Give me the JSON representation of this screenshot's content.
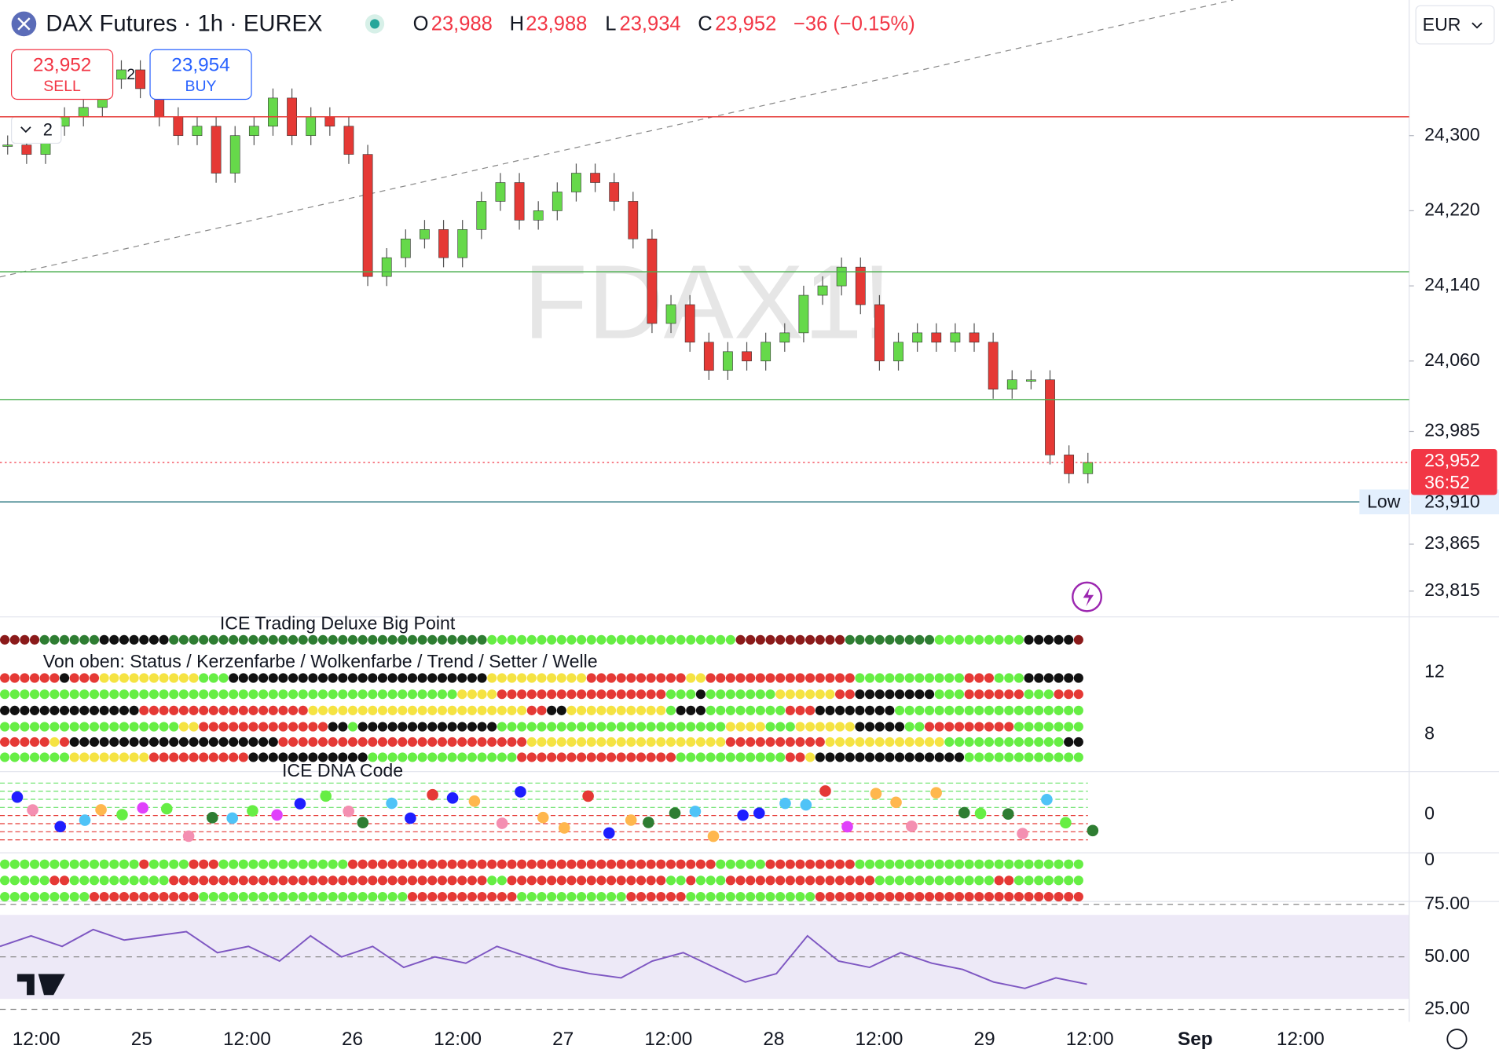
{
  "header": {
    "symbol": "DAX Futures · 1h · EUREX",
    "open_label": "O",
    "open": "23,988",
    "high_label": "H",
    "high": "23,988",
    "low_label": "L",
    "low": "23,934",
    "close_label": "C",
    "close": "23,952",
    "change": "−36 (−0.15%)",
    "currency": "EUR"
  },
  "order_panel": {
    "sell_price": "23,952",
    "sell_label": "SELL",
    "spread": "2",
    "buy_price": "23,954",
    "buy_label": "BUY",
    "collapse": "2"
  },
  "watermark": "FDAX1!",
  "price_axis": {
    "ylim": [
      24420,
      23770
    ],
    "yticks": [
      {
        "value": 24300,
        "label": "24,300"
      },
      {
        "value": 24220,
        "label": "24,220"
      },
      {
        "value": 24140,
        "label": "24,140"
      },
      {
        "value": 24060,
        "label": "24,060"
      },
      {
        "value": 23985,
        "label": "23,985"
      },
      {
        "value": 23865,
        "label": "23,865"
      },
      {
        "value": 23815,
        "label": "23,815"
      }
    ]
  },
  "last_price": {
    "value": 23952,
    "label": "23,952",
    "countdown": "36:52"
  },
  "low_marker": {
    "value": 23910,
    "label": "23,910",
    "name": "Low"
  },
  "levels": [
    24320,
    24155,
    24019
  ],
  "price": {
    "closes": [
      24290,
      24280,
      24310,
      24320,
      24330,
      24360,
      24370,
      24350,
      24320,
      24300,
      24310,
      24260,
      24300,
      24310,
      24340,
      24300,
      24320,
      24310,
      24280,
      24150,
      24170,
      24190,
      24200,
      24170,
      24200,
      24230,
      24250,
      24210,
      24220,
      24240,
      24260,
      24250,
      24230,
      24190,
      24100,
      24120,
      24080,
      24050,
      24070,
      24060,
      24080,
      24090,
      24130,
      24140,
      24160,
      24120,
      24060,
      24080,
      24090,
      24080,
      24090,
      24080,
      24030,
      24040,
      24040,
      23960,
      23940,
      23952
    ]
  },
  "indicators": {
    "big_point_title": "ICE Trading Deluxe Big Point",
    "status_title": "Von oben: Status / Kerzenfarbe / Wolkenfarbe / Trend / Setter / Welle",
    "status_ticks": [
      "12",
      "8"
    ],
    "dna_title": "ICE DNA Code",
    "dna_tick": "0",
    "momentum_tick": "0"
  },
  "rsi": {
    "ylim": [
      25,
      75
    ],
    "yticks": [
      {
        "value": 75,
        "label": "75.00"
      },
      {
        "value": 50,
        "label": "50.00"
      },
      {
        "value": 25,
        "label": "25.00"
      }
    ],
    "values": [
      55,
      60,
      55,
      63,
      58,
      60,
      62,
      52,
      55,
      48,
      60,
      50,
      55,
      45,
      50,
      47,
      55,
      50,
      45,
      42,
      40,
      48,
      52,
      45,
      38,
      42,
      60,
      48,
      45,
      52,
      47,
      44,
      38,
      35,
      40,
      37
    ]
  },
  "time_axis": {
    "labels": [
      "12:00",
      "25",
      "12:00",
      "26",
      "12:00",
      "27",
      "12:00",
      "28",
      "12:00",
      "29",
      "12:00",
      "Sep",
      "12:00"
    ]
  }
}
